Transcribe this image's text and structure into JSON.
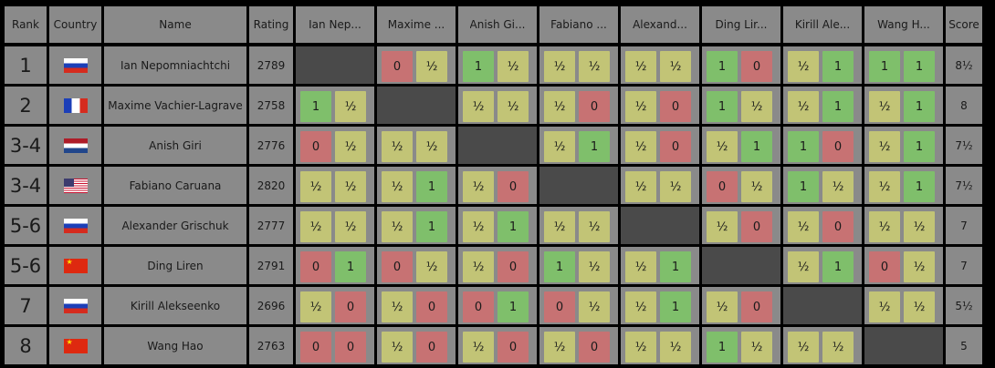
{
  "headers": {
    "rank": "Rank",
    "country": "Country",
    "name": "Name",
    "rating": "Rating",
    "score": "Score",
    "opponents": [
      "Ian Nep...",
      "Maxime ...",
      "Anish Gi...",
      "Fabiano ...",
      "Alexand...",
      "Ding Lir...",
      "Kirill Ale...",
      "Wang H..."
    ]
  },
  "colors": {
    "win": "#7fbf6b",
    "draw": "#c2c476",
    "loss": "#c77273",
    "cell": "#8a8a8a",
    "self": "#4a4a4a"
  },
  "rows": [
    {
      "rank": "1",
      "country": "russia-flag",
      "name": "Ian Nepomniachtchi",
      "rating": "2789",
      "score": "8½",
      "results": [
        null,
        [
          "0",
          "½"
        ],
        [
          "1",
          "½"
        ],
        [
          "½",
          "½"
        ],
        [
          "½",
          "½"
        ],
        [
          "1",
          "0"
        ],
        [
          "½",
          "1"
        ],
        [
          "1",
          "1"
        ]
      ]
    },
    {
      "rank": "2",
      "country": "france-flag",
      "name": "Maxime Vachier-Lagrave",
      "rating": "2758",
      "score": "8",
      "results": [
        [
          "1",
          "½"
        ],
        null,
        [
          "½",
          "½"
        ],
        [
          "½",
          "0"
        ],
        [
          "½",
          "0"
        ],
        [
          "1",
          "½"
        ],
        [
          "½",
          "1"
        ],
        [
          "½",
          "1"
        ]
      ]
    },
    {
      "rank": "3-4",
      "country": "netherlands-flag",
      "name": "Anish Giri",
      "rating": "2776",
      "score": "7½",
      "results": [
        [
          "0",
          "½"
        ],
        [
          "½",
          "½"
        ],
        null,
        [
          "½",
          "1"
        ],
        [
          "½",
          "0"
        ],
        [
          "½",
          "1"
        ],
        [
          "1",
          "0"
        ],
        [
          "½",
          "1"
        ]
      ]
    },
    {
      "rank": "3-4",
      "country": "usa-flag",
      "name": "Fabiano Caruana",
      "rating": "2820",
      "score": "7½",
      "results": [
        [
          "½",
          "½"
        ],
        [
          "½",
          "1"
        ],
        [
          "½",
          "0"
        ],
        null,
        [
          "½",
          "½"
        ],
        [
          "0",
          "½"
        ],
        [
          "1",
          "½"
        ],
        [
          "½",
          "1"
        ]
      ]
    },
    {
      "rank": "5-6",
      "country": "russia-flag",
      "name": "Alexander Grischuk",
      "rating": "2777",
      "score": "7",
      "results": [
        [
          "½",
          "½"
        ],
        [
          "½",
          "1"
        ],
        [
          "½",
          "1"
        ],
        [
          "½",
          "½"
        ],
        null,
        [
          "½",
          "0"
        ],
        [
          "½",
          "0"
        ],
        [
          "½",
          "½"
        ]
      ]
    },
    {
      "rank": "5-6",
      "country": "china-flag",
      "name": "Ding Liren",
      "rating": "2791",
      "score": "7",
      "results": [
        [
          "0",
          "1"
        ],
        [
          "0",
          "½"
        ],
        [
          "½",
          "0"
        ],
        [
          "1",
          "½"
        ],
        [
          "½",
          "1"
        ],
        null,
        [
          "½",
          "1"
        ],
        [
          "0",
          "½"
        ]
      ]
    },
    {
      "rank": "7",
      "country": "russia-flag",
      "name": "Kirill Alekseenko",
      "rating": "2696",
      "score": "5½",
      "results": [
        [
          "½",
          "0"
        ],
        [
          "½",
          "0"
        ],
        [
          "0",
          "1"
        ],
        [
          "0",
          "½"
        ],
        [
          "½",
          "1"
        ],
        [
          "½",
          "0"
        ],
        null,
        [
          "½",
          "½"
        ]
      ]
    },
    {
      "rank": "8",
      "country": "china-flag",
      "name": "Wang Hao",
      "rating": "2763",
      "score": "5",
      "results": [
        [
          "0",
          "0"
        ],
        [
          "½",
          "0"
        ],
        [
          "½",
          "0"
        ],
        [
          "½",
          "0"
        ],
        [
          "½",
          "½"
        ],
        [
          "1",
          "½"
        ],
        [
          "½",
          "½"
        ],
        null
      ]
    }
  ]
}
